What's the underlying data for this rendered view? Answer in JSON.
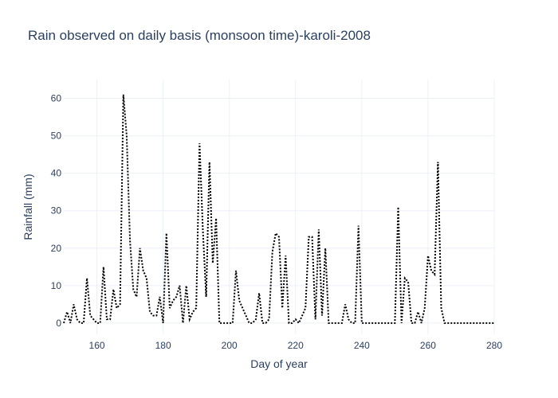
{
  "chart_data": {
    "type": "line",
    "title": "Rain observed on daily basis (monsoon time)-karoli-2008",
    "xlabel": "Day of year",
    "ylabel": "Rainfall (mm)",
    "xlim": [
      150,
      280
    ],
    "ylim": [
      -3,
      65
    ],
    "xticks": [
      160,
      180,
      200,
      220,
      240,
      260,
      280
    ],
    "yticks": [
      0,
      10,
      20,
      30,
      40,
      50,
      60
    ],
    "grid": true,
    "line_style": "dotted",
    "line_color": "#000000",
    "series": [
      {
        "name": "Rainfall",
        "x": [
          150,
          151,
          152,
          153,
          154,
          155,
          156,
          157,
          158,
          159,
          160,
          161,
          162,
          163,
          164,
          165,
          166,
          167,
          168,
          169,
          170,
          171,
          172,
          173,
          174,
          175,
          176,
          177,
          178,
          179,
          180,
          181,
          182,
          183,
          184,
          185,
          186,
          187,
          188,
          189,
          190,
          191,
          192,
          193,
          194,
          195,
          196,
          197,
          198,
          199,
          200,
          201,
          202,
          203,
          204,
          205,
          206,
          207,
          208,
          209,
          210,
          211,
          212,
          213,
          214,
          215,
          216,
          217,
          218,
          219,
          220,
          221,
          222,
          223,
          224,
          225,
          226,
          227,
          228,
          229,
          230,
          231,
          232,
          233,
          234,
          235,
          236,
          237,
          238,
          239,
          240,
          241,
          242,
          243,
          244,
          245,
          246,
          247,
          248,
          249,
          250,
          251,
          252,
          253,
          254,
          255,
          256,
          257,
          258,
          259,
          260,
          261,
          262,
          263,
          264,
          265,
          266,
          267,
          268,
          269,
          270,
          271,
          272,
          273,
          274,
          275,
          276,
          277,
          278,
          279,
          280
        ],
        "values": [
          0,
          3,
          0,
          5,
          1,
          0,
          0,
          12,
          2,
          1,
          0,
          0,
          15,
          1,
          1,
          9,
          4,
          5,
          61,
          50,
          22,
          9,
          7,
          20,
          14,
          12,
          3,
          2,
          2,
          7,
          0,
          24,
          4,
          6,
          7,
          10,
          0,
          10,
          1,
          3,
          4,
          48,
          25,
          7,
          43,
          16,
          28,
          0,
          0,
          0,
          0,
          0,
          14,
          6,
          4,
          2,
          0,
          0,
          1,
          8,
          0,
          0,
          1,
          19,
          24,
          23,
          4,
          18,
          0,
          0,
          1,
          0,
          2,
          4,
          23,
          23,
          1,
          25,
          2,
          20,
          0,
          0,
          0,
          0,
          0,
          5,
          1,
          0,
          0,
          26,
          0,
          0,
          0,
          0,
          0,
          0,
          0,
          0,
          0,
          0,
          0,
          31,
          0,
          12,
          11,
          0,
          0,
          3,
          0,
          4,
          18,
          14,
          13,
          43,
          4,
          0,
          0,
          0,
          0,
          0,
          0,
          0,
          0,
          0,
          0,
          0,
          0,
          0,
          0,
          0,
          0
        ]
      }
    ]
  }
}
